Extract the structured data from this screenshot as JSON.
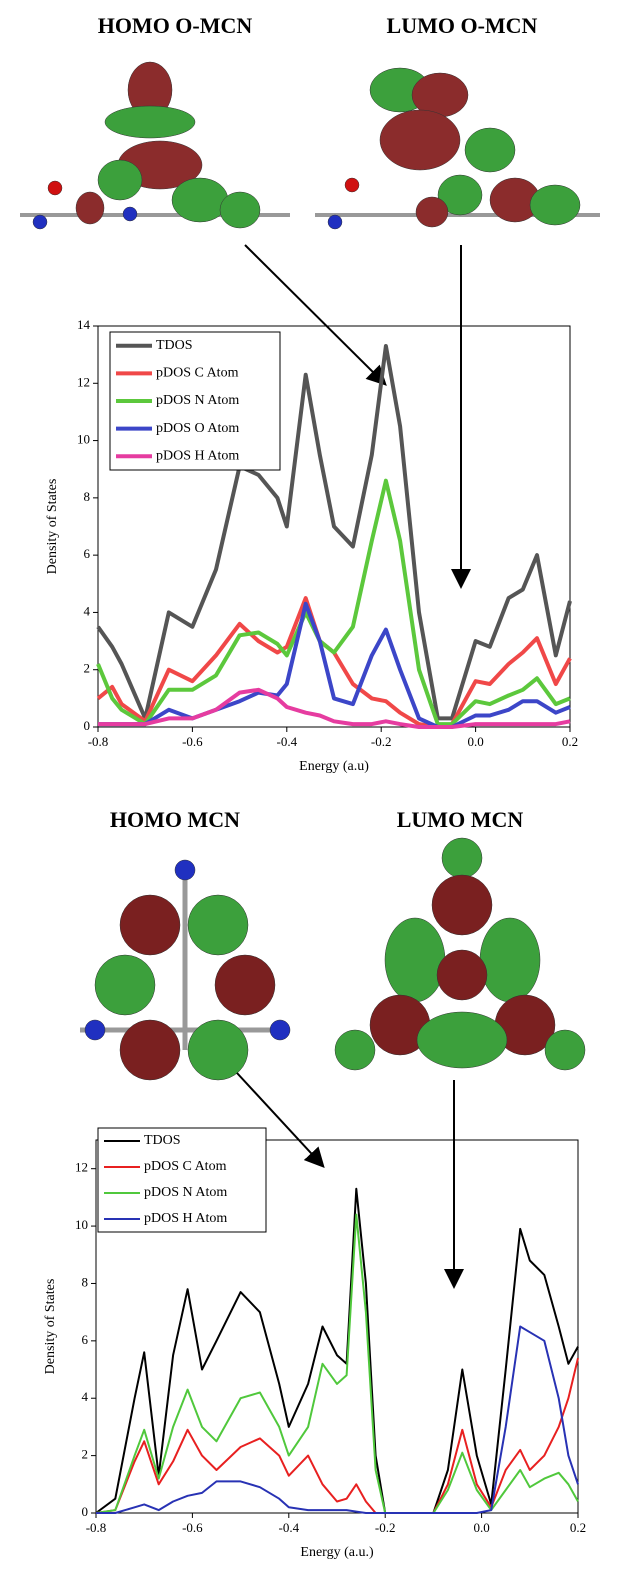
{
  "chart_data": [
    {
      "type": "line",
      "annotations": [
        "HOMO O-MCN",
        "LUMO O-MCN"
      ],
      "x_label": "Energy (a.u)",
      "y_label": "Density of States",
      "x": [
        -0.8,
        -0.77,
        -0.75,
        -0.7,
        -0.65,
        -0.6,
        -0.55,
        -0.5,
        -0.46,
        -0.42,
        -0.4,
        -0.36,
        -0.33,
        -0.3,
        -0.26,
        -0.22,
        -0.19,
        -0.16,
        -0.12,
        -0.08,
        -0.05,
        0,
        0.03,
        0.07,
        0.1,
        0.13,
        0.17,
        0.2
      ],
      "series": [
        {
          "name": "TDOS",
          "color": "#555555",
          "values": [
            3.5,
            2.8,
            2.2,
            0.3,
            4.0,
            3.5,
            5.5,
            9.1,
            8.8,
            8.0,
            7.0,
            12.3,
            9.5,
            7.0,
            6.3,
            9.5,
            13.3,
            10.5,
            4.0,
            0.3,
            0.3,
            3.0,
            2.8,
            4.5,
            4.8,
            6.0,
            2.5,
            4.4
          ]
        },
        {
          "name": "pDOS C Atom",
          "color": "#f04848",
          "values": [
            1.0,
            1.4,
            0.8,
            0.2,
            2.0,
            1.6,
            2.5,
            3.6,
            3.0,
            2.6,
            2.8,
            4.5,
            3.0,
            2.6,
            1.5,
            1.0,
            0.9,
            0.5,
            0.1,
            0.0,
            0.1,
            1.6,
            1.5,
            2.2,
            2.6,
            3.1,
            1.5,
            2.4
          ]
        },
        {
          "name": "pDOS N Atom",
          "color": "#5cc83c",
          "values": [
            2.2,
            1.0,
            0.6,
            0.1,
            1.3,
            1.3,
            1.8,
            3.2,
            3.3,
            2.9,
            2.5,
            4.0,
            3.0,
            2.6,
            3.5,
            6.5,
            8.6,
            6.5,
            2.0,
            0.1,
            0.1,
            0.9,
            0.8,
            1.1,
            1.3,
            1.7,
            0.8,
            1.0
          ]
        },
        {
          "name": "pDOS O Atom",
          "color": "#3c46c8",
          "values": [
            0.1,
            0.1,
            0.1,
            0.1,
            0.6,
            0.3,
            0.6,
            0.9,
            1.2,
            1.1,
            1.5,
            4.3,
            3.0,
            1.0,
            0.8,
            2.5,
            3.4,
            2.0,
            0.3,
            0.0,
            0.0,
            0.4,
            0.4,
            0.6,
            0.9,
            0.9,
            0.5,
            0.7
          ]
        },
        {
          "name": "pDOS H Atom",
          "color": "#e63ca0",
          "values": [
            0.1,
            0.1,
            0.1,
            0.1,
            0.3,
            0.3,
            0.6,
            1.2,
            1.3,
            1.0,
            0.7,
            0.5,
            0.4,
            0.2,
            0.1,
            0.1,
            0.2,
            0.1,
            0.0,
            0.0,
            0.0,
            0.1,
            0.1,
            0.1,
            0.1,
            0.1,
            0.1,
            0.2
          ]
        }
      ],
      "xlim": [
        -0.8,
        0.2
      ],
      "xticks": [
        -0.8,
        -0.6,
        -0.4,
        -0.2,
        {
          "value": 0,
          "label": "0.0"
        },
        0.2
      ],
      "ylim": [
        0,
        14
      ],
      "yticks": [
        0,
        2,
        4,
        6,
        8,
        10,
        12,
        14
      ],
      "legend": "top-left"
    },
    {
      "type": "line",
      "annotations": [
        "HOMO MCN",
        "LUMO MCN"
      ],
      "x_label": "Energy (a.u.)",
      "y_label": "Density of States",
      "x": [
        -0.8,
        -0.76,
        -0.72,
        -0.7,
        -0.67,
        -0.64,
        -0.61,
        -0.58,
        -0.55,
        -0.5,
        -0.46,
        -0.42,
        -0.4,
        -0.36,
        -0.33,
        -0.3,
        -0.28,
        -0.26,
        -0.24,
        -0.22,
        -0.2,
        -0.16,
        -0.1,
        -0.07,
        -0.04,
        -0.01,
        0.02,
        0.05,
        0.08,
        0.1,
        0.13,
        0.16,
        0.18,
        0.2
      ],
      "series": [
        {
          "name": "TDOS",
          "color": "#000000",
          "values": [
            0,
            0.5,
            4.0,
            5.6,
            1.3,
            5.5,
            7.8,
            5.0,
            6.0,
            7.7,
            7.0,
            4.5,
            3.0,
            4.5,
            6.5,
            5.5,
            5.2,
            11.3,
            8.0,
            2.0,
            0,
            0,
            0,
            1.5,
            5.0,
            2.0,
            0.3,
            5.0,
            9.9,
            8.8,
            8.3,
            6.5,
            5.2,
            5.8
          ]
        },
        {
          "name": "pDOS C Atom",
          "color": "#e82020",
          "values": [
            0,
            0.1,
            1.8,
            2.5,
            1.0,
            1.8,
            2.9,
            2.0,
            1.5,
            2.3,
            2.6,
            2.0,
            1.3,
            2.0,
            1.0,
            0.4,
            0.5,
            1.0,
            0.4,
            0,
            0,
            0,
            0,
            1.0,
            2.9,
            1.0,
            0.2,
            1.5,
            2.2,
            1.5,
            2.0,
            3.0,
            4.0,
            5.4
          ]
        },
        {
          "name": "pDOS N Atom",
          "color": "#50c83c",
          "values": [
            0,
            0.1,
            2.0,
            2.9,
            1.2,
            3.0,
            4.3,
            3.0,
            2.5,
            4.0,
            4.2,
            3.0,
            2.0,
            3.0,
            5.2,
            4.5,
            4.8,
            10.4,
            7.0,
            1.5,
            0,
            0,
            0,
            0.8,
            2.1,
            0.8,
            0.1,
            0.8,
            1.5,
            0.9,
            1.2,
            1.4,
            1.0,
            0.4
          ]
        },
        {
          "name": "pDOS H Atom",
          "color": "#2832b4",
          "values": [
            0,
            0,
            0.2,
            0.3,
            0.1,
            0.4,
            0.6,
            0.7,
            1.1,
            1.1,
            0.9,
            0.5,
            0.2,
            0.1,
            0.1,
            0.1,
            0.1,
            0.05,
            0,
            0,
            0,
            0,
            0,
            0,
            0,
            0,
            0.1,
            3.0,
            6.5,
            6.3,
            6.0,
            4.0,
            2.0,
            1.0
          ]
        }
      ],
      "xlim": [
        -0.8,
        0.2
      ],
      "xticks": [
        -0.8,
        -0.6,
        -0.4,
        -0.2,
        {
          "value": 0,
          "label": "0.0"
        },
        0.2
      ],
      "ylim": [
        0,
        13
      ],
      "yticks": [
        0,
        2,
        4,
        6,
        8,
        10,
        12
      ],
      "legend": "top-left"
    }
  ]
}
